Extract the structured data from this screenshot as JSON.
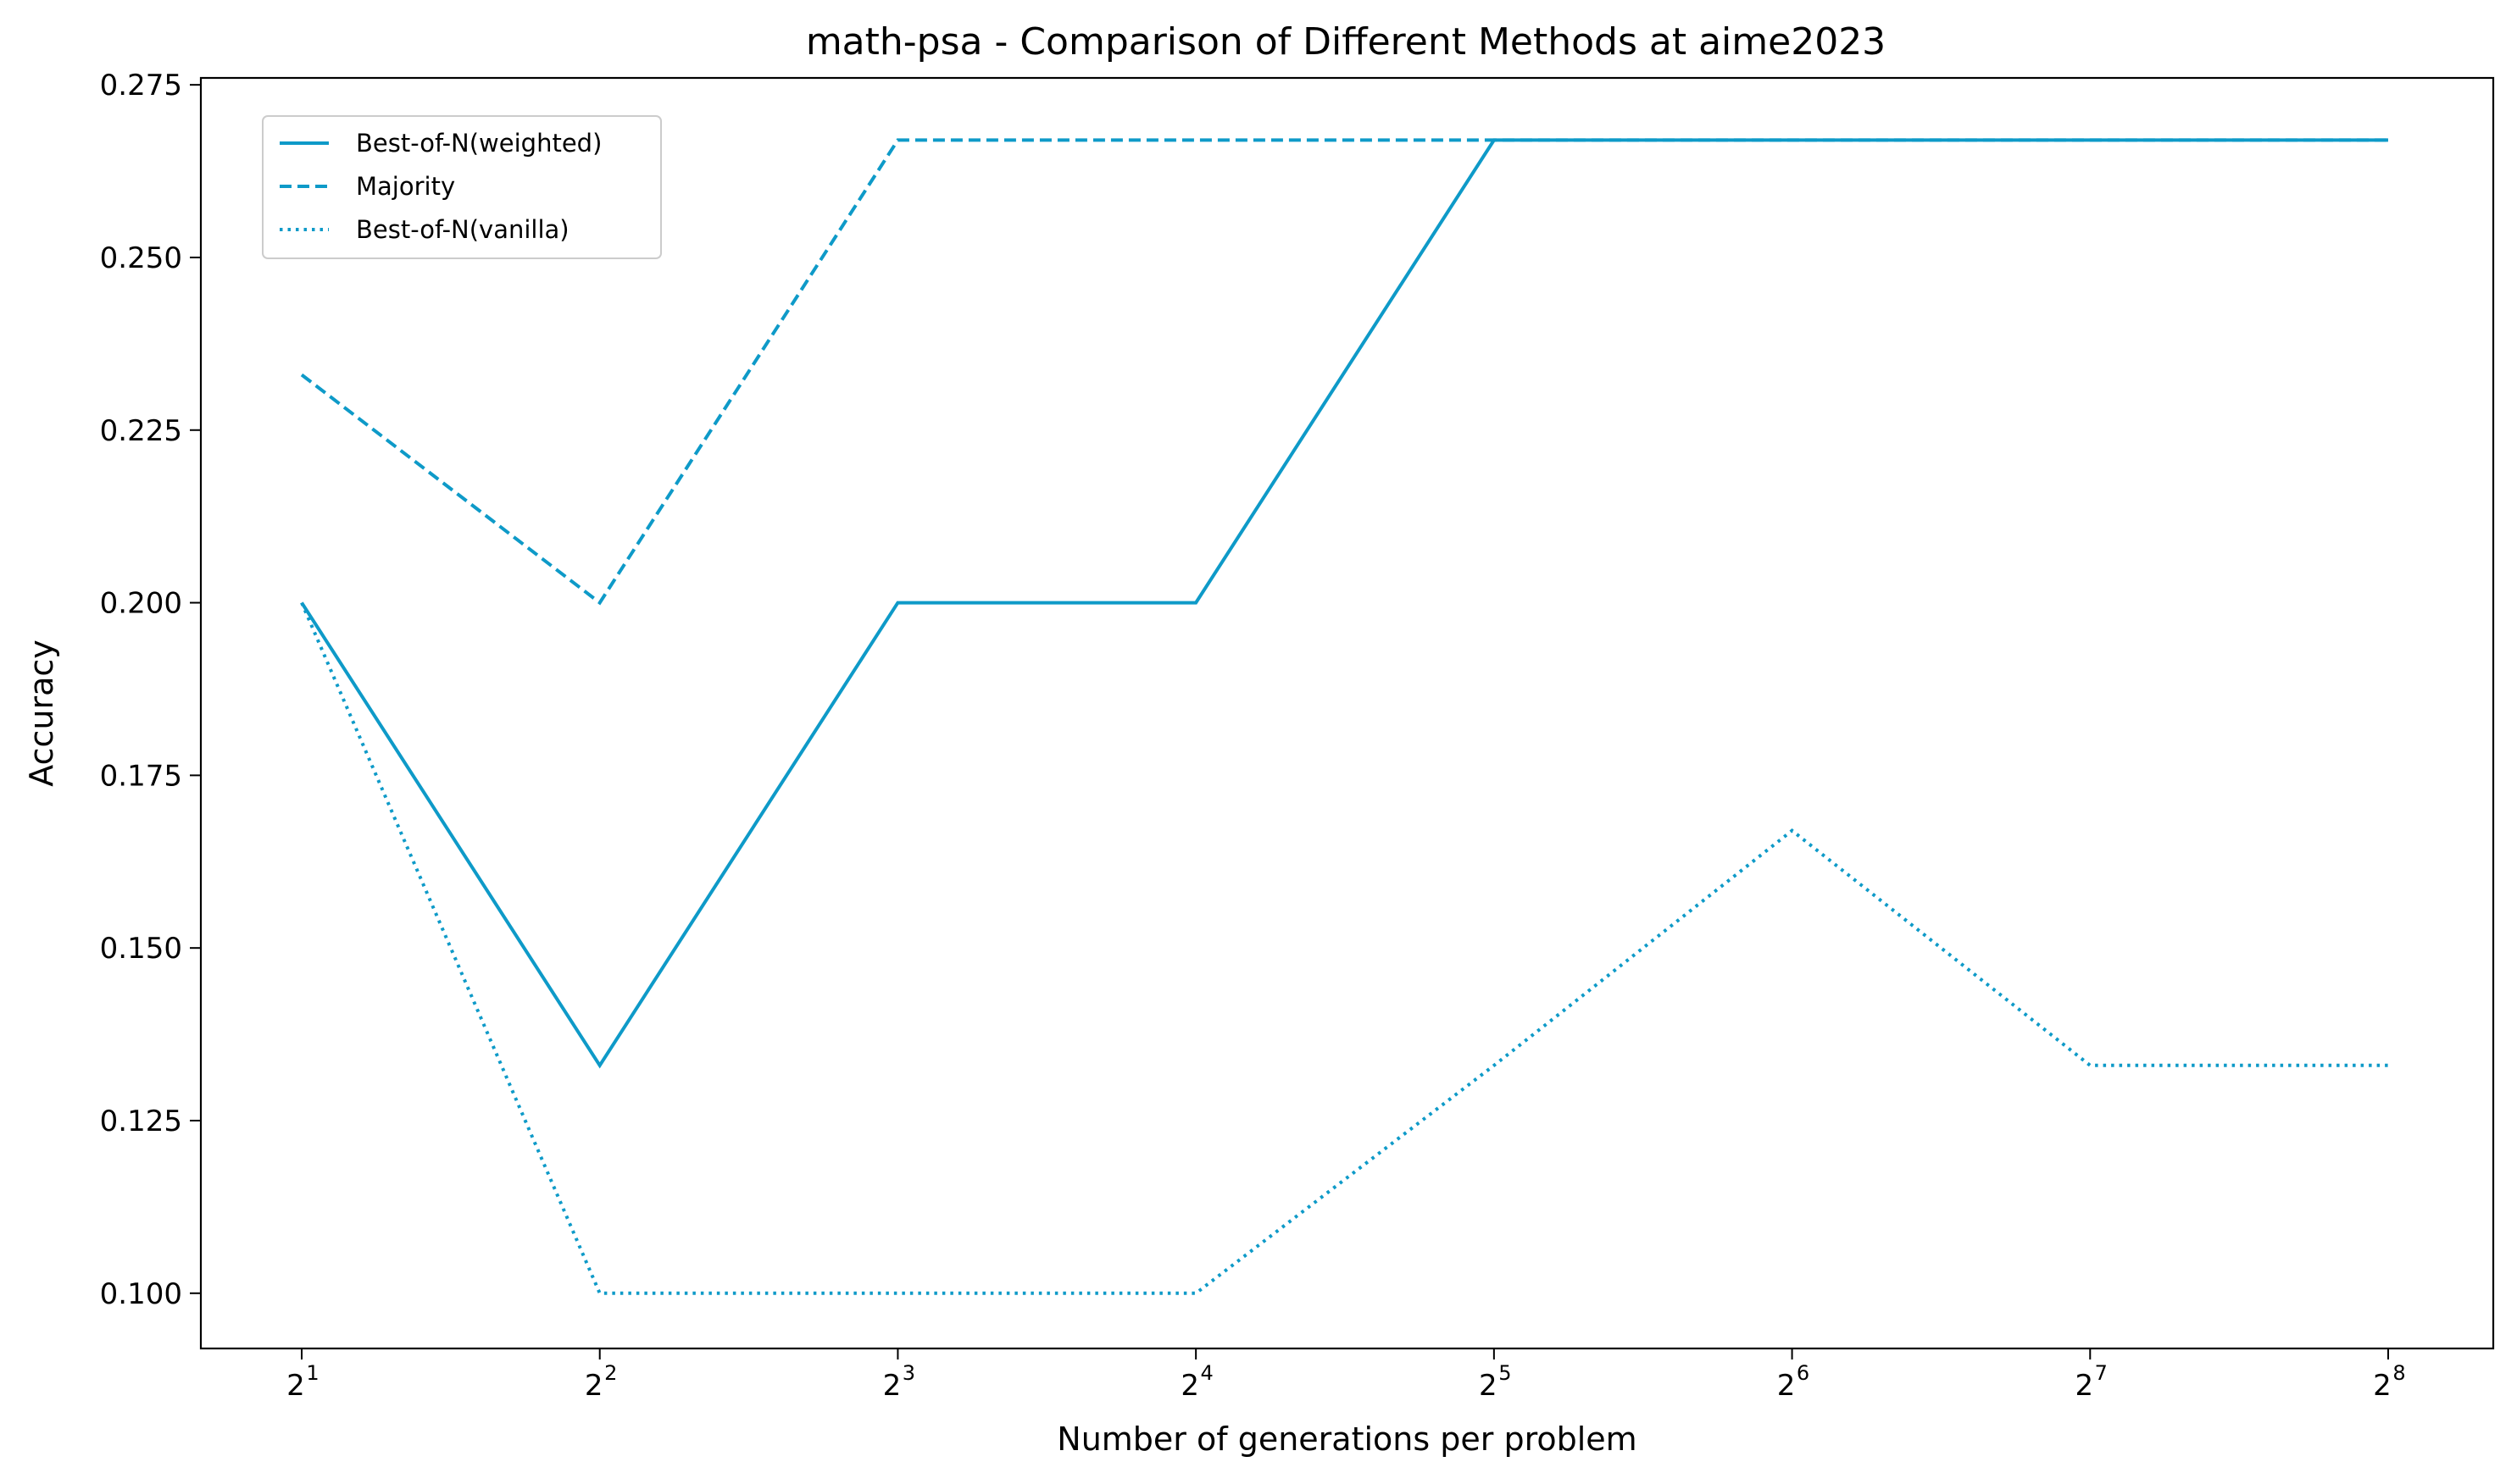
{
  "chart_data": {
    "type": "line",
    "title": "math-psa - Comparison of Different Methods at aime2023",
    "xlabel": "Number of generations per problem",
    "ylabel": "Accuracy",
    "x": [
      1,
      2,
      3,
      4,
      5,
      6,
      7,
      8
    ],
    "x_tick_base": "2",
    "x_scale": "log2",
    "y_ticks": [
      "0.100",
      "0.125",
      "0.150",
      "0.175",
      "0.200",
      "0.225",
      "0.250",
      "0.275"
    ],
    "ylim": [
      0.092,
      0.276
    ],
    "grid": false,
    "legend_position": "top-left",
    "line_color": "#0e9ac8",
    "series": [
      {
        "name": "Best-of-N(weighted)",
        "style": "solid",
        "values": [
          0.2,
          0.133,
          0.2,
          0.2,
          0.267,
          0.267,
          0.267,
          0.267
        ]
      },
      {
        "name": "Majority",
        "style": "dashed",
        "values": [
          0.233,
          0.2,
          0.267,
          0.267,
          0.267,
          0.267,
          0.267,
          0.267
        ]
      },
      {
        "name": "Best-of-N(vanilla)",
        "style": "dotted",
        "values": [
          0.2,
          0.1,
          0.1,
          0.1,
          0.133,
          0.167,
          0.133,
          0.133
        ]
      }
    ]
  }
}
